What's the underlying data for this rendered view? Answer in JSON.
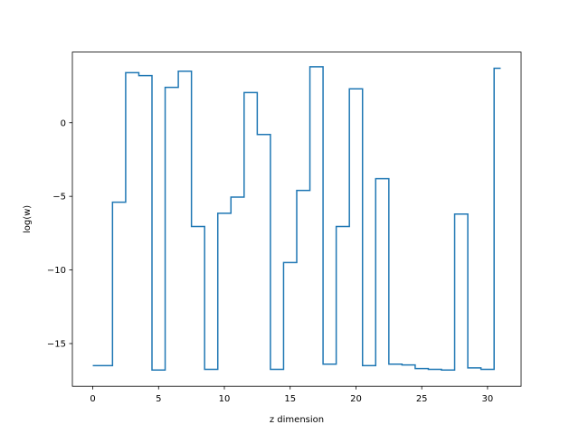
{
  "chart_data": {
    "type": "line",
    "drawstyle": "steps-mid",
    "title": "",
    "xlabel": "z dimension",
    "ylabel": "log(w)",
    "xlim": [
      -1.55,
      32.55
    ],
    "ylim": [
      -17.9,
      4.8
    ],
    "grid": false,
    "x_ticks": [
      0,
      5,
      10,
      15,
      20,
      25,
      30
    ],
    "x_tick_labels": [
      "0",
      "5",
      "10",
      "15",
      "20",
      "25",
      "30"
    ],
    "y_ticks": [
      -15,
      -10,
      -5,
      0
    ],
    "y_tick_labels": [
      "−15",
      "−10",
      "−5",
      "0"
    ],
    "series": [
      {
        "color": "#1f77b4",
        "x": [
          0,
          1,
          2,
          3,
          4,
          5,
          6,
          7,
          8,
          9,
          10,
          11,
          12,
          13,
          14,
          15,
          16,
          17,
          18,
          19,
          20,
          21,
          22,
          23,
          24,
          25,
          26,
          27,
          28,
          29,
          30,
          31
        ],
        "y": [
          -16.5,
          -16.5,
          -5.4,
          3.4,
          3.2,
          -16.8,
          2.4,
          3.5,
          -7.05,
          -16.75,
          -6.15,
          -5.05,
          2.05,
          -0.8,
          -16.75,
          -9.5,
          -4.6,
          3.8,
          -16.4,
          -7.05,
          2.3,
          -16.5,
          -3.8,
          -16.4,
          -16.45,
          -16.7,
          -16.75,
          -16.8,
          -6.2,
          -16.65,
          -16.75,
          3.7
        ]
      }
    ]
  }
}
